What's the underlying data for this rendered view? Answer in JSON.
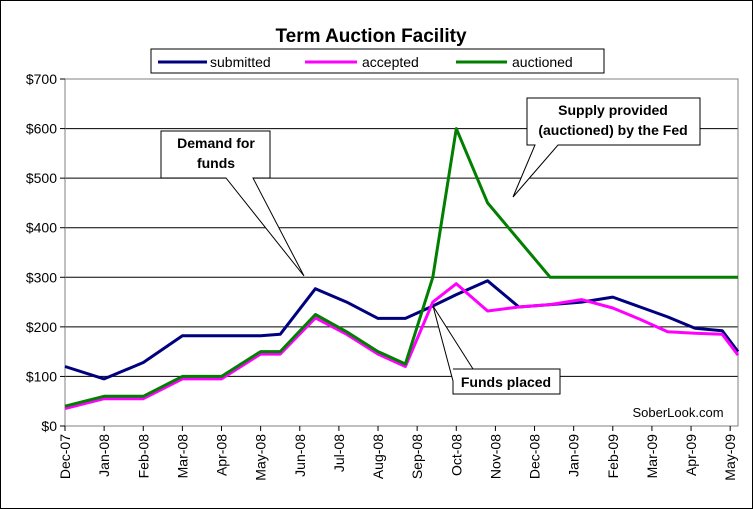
{
  "chart_data": {
    "type": "line",
    "title": "Term Auction Facility",
    "categories": [
      "Dec-07",
      "Jan-08",
      "Feb-08",
      "Mar-08",
      "Apr-08",
      "May-08",
      "Jun-08",
      "Jul-08",
      "Aug-08",
      "Sep-08",
      "Oct-08",
      "Nov-08",
      "Dec-08",
      "Jan-09",
      "Feb-09",
      "Mar-09",
      "Apr-09",
      "May-09"
    ],
    "x": [
      0,
      1,
      2,
      3,
      4,
      5,
      5.5,
      6.4,
      7.2,
      8,
      8.7,
      9.4,
      10,
      10.8,
      11.6,
      12.4,
      13.2,
      14,
      14.7,
      15.4,
      16.1,
      16.8,
      17.2
    ],
    "ylim": [
      0,
      700
    ],
    "yticks": [
      "$0",
      "$100",
      "$200",
      "$300",
      "$400",
      "$500",
      "$600",
      "$700"
    ],
    "grid": true,
    "legend_position": "top",
    "series": [
      {
        "name": "submitted",
        "color": "#00007f",
        "values": [
          120,
          95,
          128,
          182,
          182,
          182,
          185,
          277,
          250,
          217,
          217,
          242,
          265,
          293,
          240,
          245,
          250,
          260,
          240,
          220,
          197,
          192,
          150
        ]
      },
      {
        "name": "accepted",
        "color": "#ff00ff",
        "values": [
          35,
          55,
          55,
          95,
          95,
          145,
          145,
          218,
          185,
          145,
          120,
          250,
          287,
          232,
          240,
          245,
          255,
          238,
          215,
          190,
          187,
          185,
          143
        ]
      },
      {
        "name": "auctioned",
        "color": "#007f00",
        "values": [
          40,
          60,
          60,
          100,
          100,
          150,
          150,
          225,
          190,
          150,
          125,
          300,
          600,
          450,
          375,
          300,
          300,
          300,
          300,
          300,
          300,
          300,
          300
        ]
      }
    ],
    "annotations": [
      {
        "text": [
          "Demand for",
          "funds"
        ]
      },
      {
        "text": [
          "Supply provided",
          "(auctioned) by the Fed"
        ]
      },
      {
        "text": [
          "Funds placed"
        ]
      }
    ],
    "watermark": "SoberLook.com"
  }
}
